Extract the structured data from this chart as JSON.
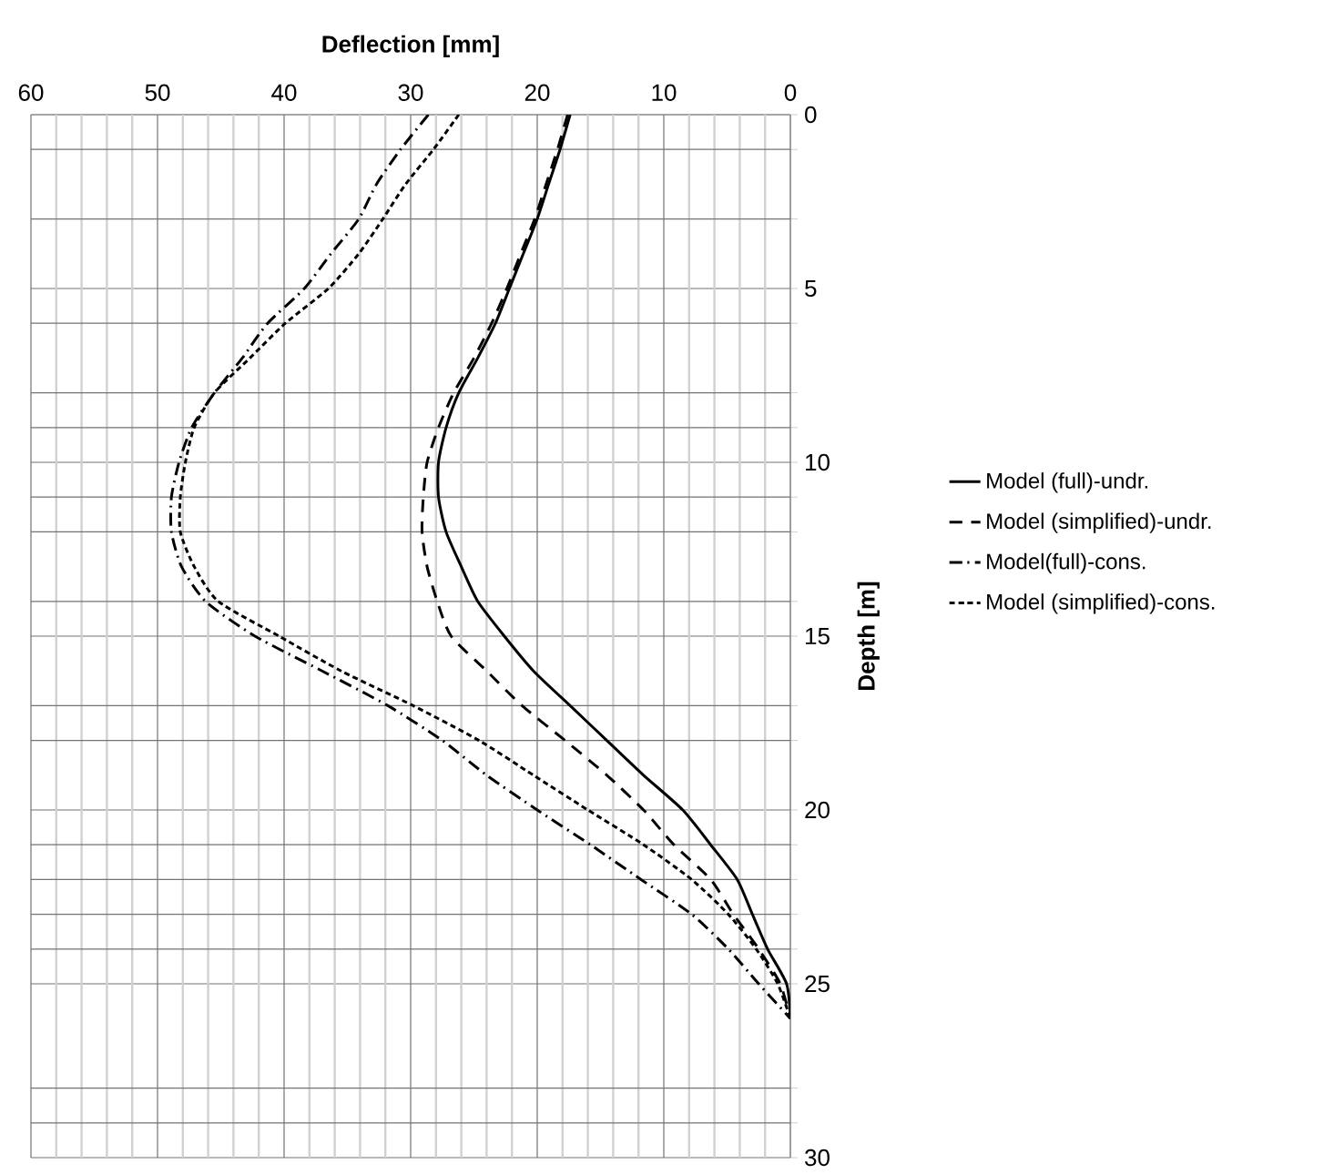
{
  "chart_data": {
    "type": "line",
    "xlabel": "Deflection [mm]",
    "ylabel": "Depth [m]",
    "xlim": [
      60,
      0
    ],
    "ylim": [
      30,
      0
    ],
    "xticks": [
      60,
      {
        "value": 58,
        "label": null
      },
      {
        "value": 56,
        "label": null
      },
      {
        "value": 54,
        "label": null
      },
      {
        "value": 52,
        "label": null
      },
      50,
      {
        "value": 48,
        "label": null
      },
      {
        "value": 46,
        "label": null
      },
      {
        "value": 44,
        "label": null
      },
      {
        "value": 42,
        "label": null
      },
      40,
      {
        "value": 38,
        "label": null
      },
      {
        "value": 36,
        "label": null
      },
      {
        "value": 34,
        "label": null
      },
      {
        "value": 32,
        "label": null
      },
      30,
      {
        "value": 28,
        "label": null
      },
      {
        "value": 26,
        "label": null
      },
      {
        "value": 24,
        "label": null
      },
      {
        "value": 22,
        "label": null
      },
      20,
      {
        "value": 18,
        "label": null
      },
      {
        "value": 16,
        "label": null
      },
      {
        "value": 14,
        "label": null
      },
      {
        "value": 12,
        "label": null
      },
      10,
      {
        "value": 8,
        "label": null
      },
      {
        "value": 6,
        "label": null
      },
      {
        "value": 4,
        "label": null
      },
      {
        "value": 2,
        "label": null
      },
      0
    ],
    "yticks": [
      0,
      {
        "value": 1,
        "label": null
      },
      {
        "value": 3,
        "label": null
      },
      5,
      {
        "value": 6,
        "label": null
      },
      {
        "value": 8,
        "label": null
      },
      {
        "value": 9,
        "label": null
      },
      10,
      {
        "value": 11,
        "label": null
      },
      {
        "value": 12,
        "label": null
      },
      {
        "value": 14,
        "label": null
      },
      15,
      {
        "value": 17,
        "label": null
      },
      {
        "value": 18,
        "label": null
      },
      20,
      {
        "value": 21,
        "label": null
      },
      {
        "value": 22,
        "label": null
      },
      {
        "value": 23,
        "label": null
      },
      {
        "value": 24,
        "label": null
      },
      25,
      {
        "value": 28,
        "label": null
      },
      {
        "value": 29,
        "label": null
      },
      30
    ],
    "grid": true,
    "legend": "right",
    "marker": "none",
    "series": [
      {
        "name": "Model (full)-undr.",
        "color": "#000000",
        "line_style": "solid",
        "x": [
          17.4,
          18.2,
          19.1,
          20.0,
          21.1,
          22.2,
          23.3,
          24.7,
          26.2,
          27.2,
          27.8,
          27.8,
          27.2,
          26.0,
          24.7,
          22.6,
          20.3,
          17.4,
          14.5,
          11.6,
          8.5,
          6.3,
          4.2,
          3.0,
          1.8,
          0.3,
          0
        ],
        "values": [
          0,
          1,
          2,
          3,
          4,
          5,
          6,
          7,
          8,
          9,
          10,
          11,
          12,
          13,
          14,
          15,
          16,
          17,
          18,
          19,
          20,
          21,
          22,
          23,
          24,
          25,
          26
        ]
      },
      {
        "name": "Model (simplified)-undr.",
        "color": "#000000",
        "line_style": "dashed",
        "x": [
          17.6,
          18.4,
          19.3,
          20.2,
          21.3,
          22.4,
          23.6,
          25.0,
          26.6,
          27.8,
          28.7,
          29.0,
          29.1,
          28.7,
          27.9,
          26.8,
          24.0,
          21.2,
          17.8,
          14.5,
          11.6,
          9.2,
          6.3,
          4.5,
          2.5,
          0.8,
          0
        ],
        "values": [
          0,
          1,
          2,
          3,
          4,
          5,
          6,
          7,
          8,
          9,
          10,
          11,
          12,
          13,
          14,
          15,
          16,
          17,
          18,
          19,
          20,
          21,
          22,
          23,
          24,
          25,
          26
        ]
      },
      {
        "name": "Model(full)-cons.",
        "color": "#000000",
        "line_style": "dashdot",
        "x": [
          28.6,
          30.8,
          32.7,
          34.1,
          36.3,
          38.4,
          41.3,
          43.3,
          45.5,
          47.3,
          48.3,
          48.9,
          48.9,
          48.1,
          46.2,
          42.3,
          37.0,
          31.8,
          27.5,
          24.0,
          20.0,
          15.8,
          11.8,
          7.8,
          4.9,
          2.5,
          0
        ],
        "values": [
          0,
          1,
          2,
          3,
          4,
          5,
          6,
          7,
          8,
          9,
          10,
          11,
          12,
          13,
          14,
          15,
          16,
          17,
          18,
          19,
          20,
          21,
          22,
          23,
          24,
          25,
          26
        ]
      },
      {
        "name": "Model (simplified)-cons.",
        "color": "#000000",
        "line_style": "dotted",
        "x": [
          26.2,
          28.2,
          30.4,
          32.2,
          34.1,
          36.5,
          39.9,
          42.7,
          45.5,
          47.1,
          47.8,
          48.2,
          48.2,
          47.1,
          45.2,
          40.4,
          35.5,
          29.8,
          24.6,
          20.3,
          16.0,
          11.6,
          7.8,
          4.9,
          2.7,
          1.0,
          0
        ],
        "values": [
          0,
          1,
          2,
          3,
          4,
          5,
          6,
          7,
          8,
          9,
          10,
          11,
          12,
          13,
          14,
          15,
          16,
          17,
          18,
          19,
          20,
          21,
          22,
          23,
          24,
          25,
          26
        ]
      }
    ]
  }
}
